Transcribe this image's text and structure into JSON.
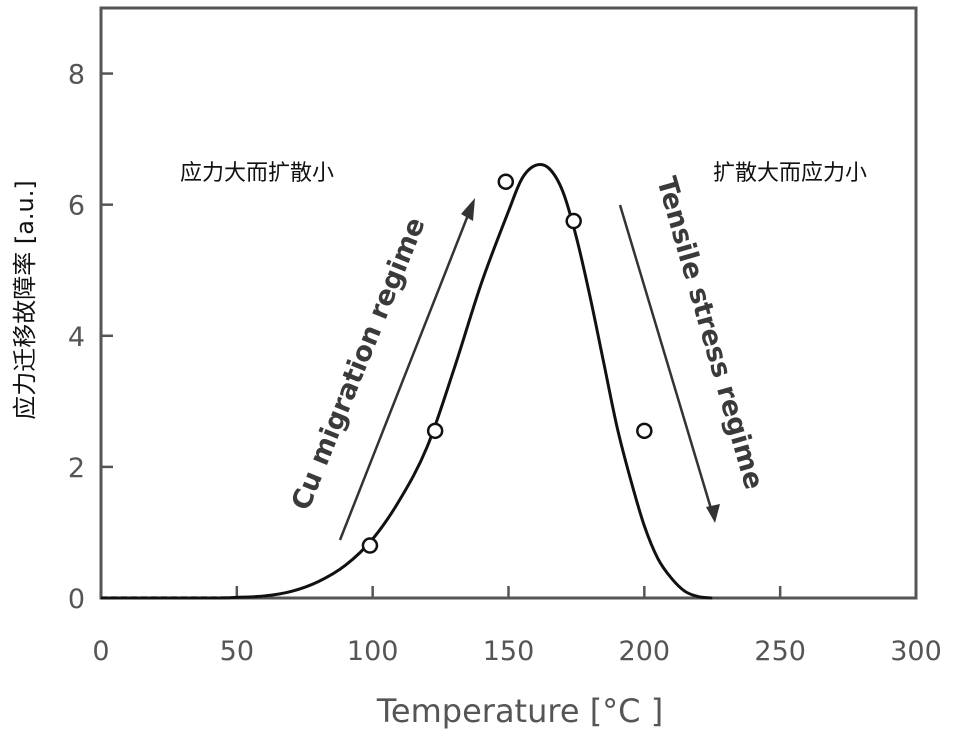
{
  "chart_data": {
    "type": "line",
    "xlabel": "Temperature [°C ]",
    "ylabel": "应力迁移故障率 [a.u.]",
    "xlim": [
      0,
      300
    ],
    "ylim": [
      0,
      9
    ],
    "x_ticks": [
      "0",
      "50",
      "100",
      "150",
      "200",
      "250",
      "300"
    ],
    "y_ticks": [
      "0",
      "2",
      "4",
      "6",
      "8"
    ],
    "series": [
      {
        "style": "curve",
        "x": [
          0,
          40,
          50,
          60,
          70,
          80,
          90,
          100,
          110,
          120,
          130,
          140,
          150,
          155,
          160,
          165,
          170,
          175,
          180,
          185,
          190,
          195,
          200,
          205,
          210,
          215,
          220,
          225
        ],
        "y": [
          0.0,
          0.0,
          0.01,
          0.03,
          0.1,
          0.25,
          0.5,
          0.9,
          1.5,
          2.3,
          3.5,
          4.8,
          5.9,
          6.4,
          6.6,
          6.55,
          6.2,
          5.5,
          4.6,
          3.6,
          2.6,
          1.8,
          1.1,
          0.6,
          0.3,
          0.1,
          0.02,
          0.0
        ]
      },
      {
        "style": "markers",
        "x": [
          99,
          123,
          149,
          174,
          200
        ],
        "y": [
          0.8,
          2.55,
          6.35,
          5.75,
          2.55
        ]
      }
    ],
    "annotations": {
      "left_cn": "应力大而扩散小",
      "right_cn": "扩散大而应力小",
      "left_regime": "Cu migration regime",
      "right_regime": "Tensile stress regime"
    },
    "grid": false,
    "colors": {
      "curve": "#111111",
      "axes": "#555555",
      "text": "#555555",
      "arrow": "#333333"
    }
  }
}
